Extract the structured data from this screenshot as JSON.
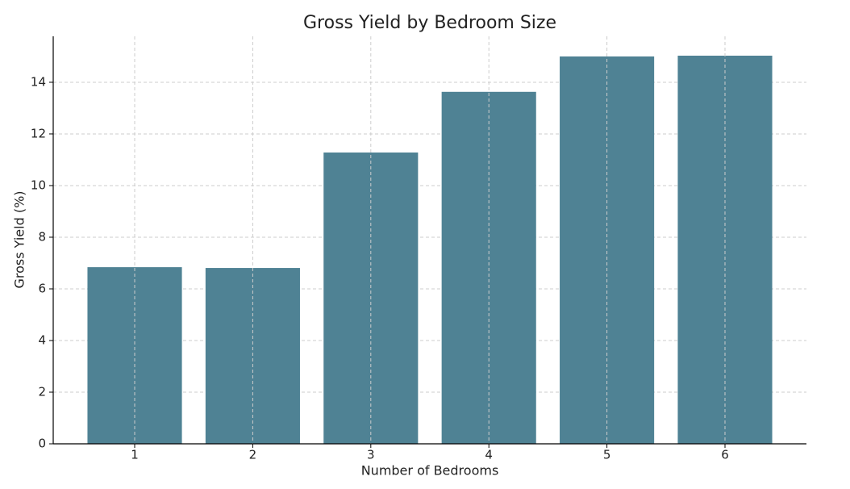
{
  "chart_data": {
    "type": "bar",
    "title": "Gross Yield by Bedroom Size",
    "x_label": "Number of Bedrooms",
    "y_label": "Gross Yield (%)",
    "x": [
      1,
      2,
      3,
      4,
      5,
      6
    ],
    "values": [
      6.84,
      6.81,
      11.28,
      13.63,
      15.0,
      15.03
    ],
    "color": "#4f8294",
    "xlim": [
      0.31,
      6.69
    ],
    "xticks": [
      1,
      2,
      3,
      4,
      5,
      6
    ],
    "ylim": [
      0,
      15.78
    ],
    "yticks": [
      0,
      2,
      4,
      6,
      8,
      10,
      12,
      14
    ],
    "grid": true
  }
}
